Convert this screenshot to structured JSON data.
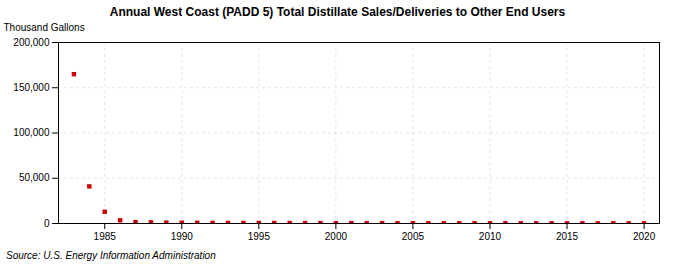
{
  "chart_data": {
    "type": "scatter",
    "title": "Annual West Coast (PADD 5) Total Distillate Sales/Deliveries to Other End Users",
    "ylabel": "Thousand Gallons",
    "source": "Source: U.S. Energy Information Administration",
    "x": [
      1983,
      1984,
      1985,
      1986,
      1987,
      1988,
      1989,
      1990,
      1991,
      1992,
      1993,
      1994,
      1995,
      1996,
      1997,
      1998,
      1999,
      2000,
      2001,
      2002,
      2003,
      2004,
      2005,
      2006,
      2007,
      2008,
      2009,
      2010,
      2011,
      2012,
      2013,
      2014,
      2015,
      2016,
      2017,
      2018,
      2019,
      2020
    ],
    "values": [
      165000,
      41000,
      13000,
      3500,
      1500,
      1200,
      1000,
      900,
      800,
      700,
      650,
      600,
      600,
      550,
      500,
      500,
      450,
      400,
      400,
      380,
      350,
      350,
      320,
      300,
      300,
      280,
      260,
      250,
      240,
      230,
      220,
      210,
      200,
      190,
      185,
      180,
      175,
      170
    ],
    "color": "#cc0000",
    "marker": "square",
    "xlim": [
      1982,
      2021
    ],
    "xticks": [
      1985,
      1990,
      1995,
      2000,
      2005,
      2010,
      2015,
      2020
    ],
    "ylim": [
      0,
      200000
    ],
    "yticks": [
      0,
      {
        "value": 50000,
        "label": "50,000"
      },
      {
        "value": 100000,
        "label": "100,000"
      },
      {
        "value": 150000,
        "label": "150,000"
      },
      {
        "value": 200000,
        "label": "200,000"
      }
    ],
    "grid": true
  }
}
